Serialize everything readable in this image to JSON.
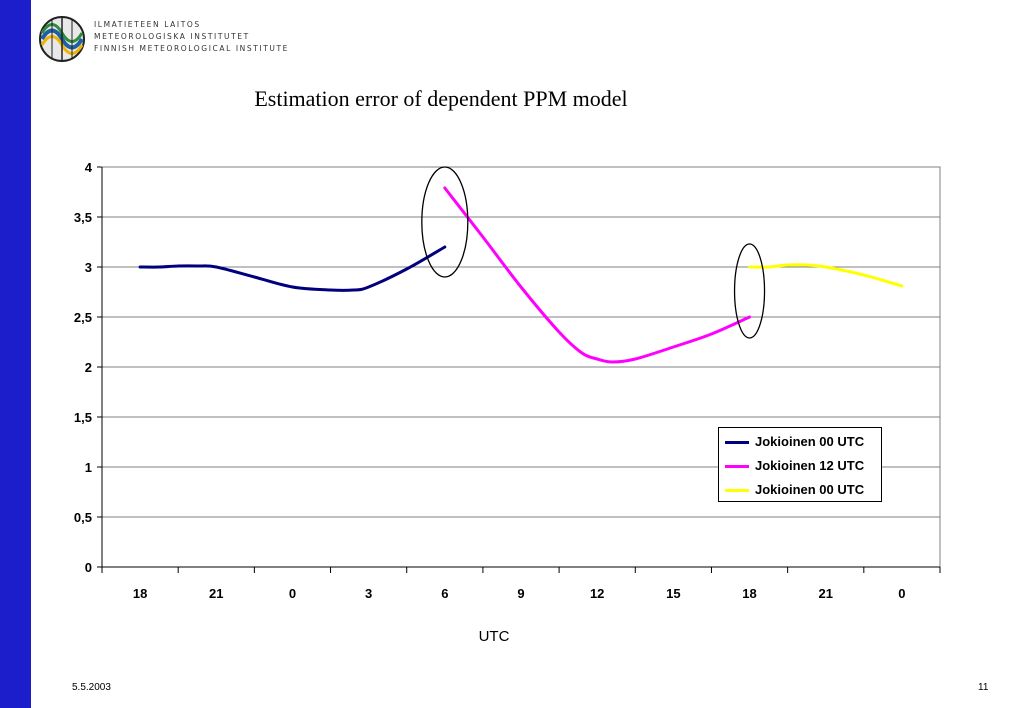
{
  "header": {
    "org_lines": [
      "ILMATIETEEN LAITOS",
      "METEOROLOGISKA INSTITUTET",
      "FINNISH METEOROLOGICAL INSTITUTE"
    ]
  },
  "footer": {
    "date": "5.5.2003",
    "page": "11"
  },
  "colors": {
    "side_bar": "#1c1ecc",
    "plot_border": "#808080",
    "grid": "#808080"
  },
  "chart_data": {
    "type": "line",
    "title": "Estimation error of dependent PPM model",
    "xlabel": "UTC",
    "ylabel": "",
    "categories": [
      "18",
      "21",
      "0",
      "3",
      "6",
      "9",
      "12",
      "15",
      "18",
      "21",
      "0"
    ],
    "yticks": [
      "0",
      "0,5",
      "1",
      "1,5",
      "2",
      "2,5",
      "3",
      "3,5",
      "4"
    ],
    "ylim": [
      0,
      4
    ],
    "grid": true,
    "legend_position": "bottom-right",
    "series": [
      {
        "name": "Jokioinen 00 UTC",
        "color": "#00007f",
        "points": [
          [
            0,
            3.0
          ],
          [
            0.25,
            3.0
          ],
          [
            0.5,
            3.01
          ],
          [
            0.75,
            3.01
          ],
          [
            1,
            3.0
          ],
          [
            1.5,
            2.9
          ],
          [
            2,
            2.8
          ],
          [
            2.5,
            2.77
          ],
          [
            2.8,
            2.77
          ],
          [
            3,
            2.8
          ],
          [
            3.5,
            2.98
          ],
          [
            4,
            3.2
          ]
        ]
      },
      {
        "name": "Jokioinen 12 UTC",
        "color": "#ff00ff",
        "points": [
          [
            4,
            3.79
          ],
          [
            4.5,
            3.3
          ],
          [
            5,
            2.8
          ],
          [
            5.5,
            2.35
          ],
          [
            5.8,
            2.14
          ],
          [
            6,
            2.08
          ],
          [
            6.2,
            2.05
          ],
          [
            6.5,
            2.08
          ],
          [
            7,
            2.2
          ],
          [
            7.5,
            2.33
          ],
          [
            8,
            2.5
          ]
        ]
      },
      {
        "name": "Jokioinen 00 UTC",
        "color": "#ffff00",
        "points": [
          [
            8,
            3.0
          ],
          [
            8.25,
            3.0
          ],
          [
            8.5,
            3.02
          ],
          [
            8.75,
            3.02
          ],
          [
            9,
            3.0
          ],
          [
            9.5,
            2.92
          ],
          [
            10,
            2.81
          ]
        ]
      }
    ],
    "annotations": [
      {
        "type": "ellipse",
        "center": [
          4,
          3.45
        ],
        "note": "circles the break between the first two series"
      },
      {
        "type": "ellipse",
        "center": [
          8,
          2.76
        ],
        "note": "circles the break between the last two series"
      }
    ]
  }
}
